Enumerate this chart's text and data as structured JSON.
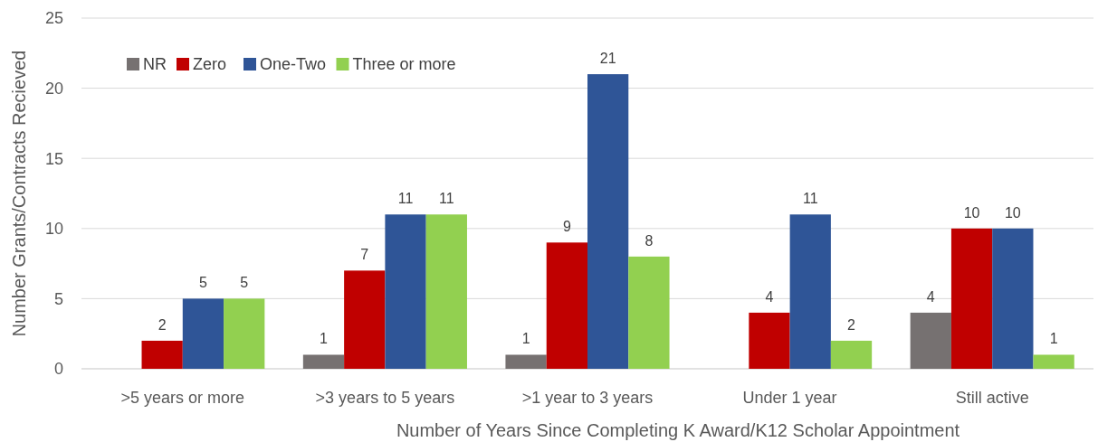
{
  "chart_data": {
    "type": "bar",
    "xlabel": "Number of Years Since Completing K Award/K12 Scholar Appointment",
    "ylabel": "Number Grants/Contracts Recieved",
    "categories": [
      ">5 years or more",
      ">3 years to 5 years",
      ">1 year to 3 years",
      "Under 1 year",
      "Still active"
    ],
    "series": [
      {
        "name": "NR",
        "color": "#767171",
        "values": [
          null,
          1,
          1,
          null,
          4
        ]
      },
      {
        "name": "Zero",
        "color": "#c00000",
        "values": [
          2,
          7,
          9,
          4,
          10
        ]
      },
      {
        "name": "One-Two",
        "color": "#2f5597",
        "values": [
          5,
          11,
          21,
          11,
          10
        ]
      },
      {
        "name": "Three or more",
        "color": "#92d050",
        "values": [
          5,
          11,
          8,
          2,
          1
        ]
      }
    ],
    "ylim": [
      0,
      25
    ],
    "yticks": [
      0,
      5,
      10,
      15,
      20,
      25
    ],
    "grid": "y",
    "legend": "top left",
    "data_labels": true
  }
}
